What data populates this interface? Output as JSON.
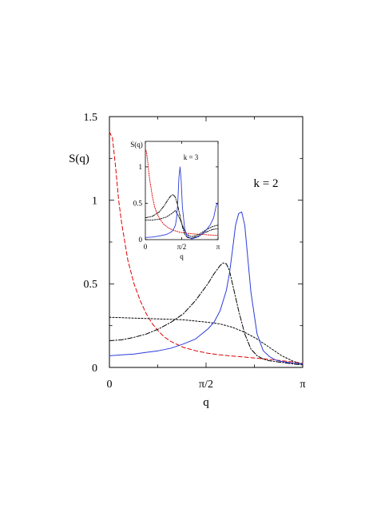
{
  "chart_data": [
    {
      "type": "line",
      "title": "",
      "annotation": "k = 2",
      "xlabel": "q",
      "ylabel": "S(q)",
      "xlim": [
        0,
        3.1416
      ],
      "ylim": [
        0,
        1.5
      ],
      "x_ticks": [
        {
          "value": 0,
          "label": "0"
        },
        {
          "value": 1.5708,
          "label": "π/2"
        },
        {
          "value": 3.1416,
          "label": "π"
        }
      ],
      "y_ticks": [
        {
          "value": 0,
          "label": "0"
        },
        {
          "value": 0.5,
          "label": "0.5"
        },
        {
          "value": 1,
          "label": "1"
        },
        {
          "value": 1.5,
          "label": "1.5"
        }
      ],
      "grid": false,
      "series": [
        {
          "color": "#e00000",
          "dash": "dashed",
          "x": [
            0.0,
            0.05,
            0.1,
            0.15,
            0.2,
            0.3,
            0.4,
            0.5,
            0.6,
            0.7,
            0.8,
            0.9,
            1.0,
            1.2,
            1.4,
            1.6,
            1.8,
            2.0,
            2.2,
            2.4,
            2.6,
            2.8,
            3.0,
            3.1416
          ],
          "y": [
            1.41,
            1.37,
            1.2,
            1.0,
            0.86,
            0.64,
            0.5,
            0.4,
            0.32,
            0.26,
            0.215,
            0.18,
            0.155,
            0.12,
            0.1,
            0.085,
            0.075,
            0.068,
            0.062,
            0.055,
            0.048,
            0.04,
            0.032,
            0.025
          ]
        },
        {
          "color": "#000000",
          "dash": "dotted",
          "x": [
            0.0,
            0.4,
            0.8,
            1.2,
            1.6,
            1.8,
            2.0,
            2.2,
            2.4,
            2.6,
            2.8,
            3.0,
            3.1416
          ],
          "y": [
            0.3,
            0.295,
            0.29,
            0.285,
            0.27,
            0.26,
            0.24,
            0.21,
            0.17,
            0.12,
            0.07,
            0.035,
            0.02
          ]
        },
        {
          "color": "#000000",
          "dash": "dashdot",
          "x": [
            0.0,
            0.2,
            0.4,
            0.6,
            0.8,
            1.0,
            1.2,
            1.4,
            1.6,
            1.7,
            1.8,
            1.85,
            1.9,
            1.95,
            2.0,
            2.1,
            2.2,
            2.3,
            2.4,
            2.5,
            2.6,
            2.8,
            3.0,
            3.1416
          ],
          "y": [
            0.16,
            0.165,
            0.18,
            0.2,
            0.23,
            0.27,
            0.32,
            0.4,
            0.5,
            0.56,
            0.61,
            0.625,
            0.62,
            0.58,
            0.5,
            0.34,
            0.2,
            0.11,
            0.07,
            0.05,
            0.04,
            0.03,
            0.02,
            0.015
          ]
        },
        {
          "color": "#2a3cd8",
          "dash": "solid",
          "x": [
            0.0,
            0.2,
            0.4,
            0.6,
            0.8,
            1.0,
            1.2,
            1.4,
            1.6,
            1.7,
            1.8,
            1.9,
            1.95,
            2.0,
            2.05,
            2.1,
            2.15,
            2.2,
            2.25,
            2.3,
            2.4,
            2.5,
            2.6,
            2.7,
            2.8,
            3.0,
            3.1416
          ],
          "y": [
            0.07,
            0.075,
            0.08,
            0.09,
            0.1,
            0.115,
            0.14,
            0.17,
            0.23,
            0.27,
            0.34,
            0.46,
            0.56,
            0.7,
            0.85,
            0.92,
            0.93,
            0.85,
            0.65,
            0.45,
            0.2,
            0.1,
            0.065,
            0.045,
            0.035,
            0.025,
            0.02
          ]
        }
      ]
    },
    {
      "type": "line",
      "title": "",
      "annotation": "k = 3",
      "xlabel": "q",
      "ylabel": "S(q)",
      "xlim": [
        0,
        3.1416
      ],
      "ylim": [
        0,
        1.35
      ],
      "x_ticks": [
        {
          "value": 0,
          "label": "0"
        },
        {
          "value": 1.5708,
          "label": "π/2"
        },
        {
          "value": 3.1416,
          "label": "π"
        }
      ],
      "y_ticks": [
        {
          "value": 0,
          "label": "0"
        },
        {
          "value": 0.5,
          "label": "0.5"
        },
        {
          "value": 1,
          "label": "1"
        }
      ],
      "grid": false,
      "series": [
        {
          "color": "#e00000",
          "dash": "dotted",
          "x": [
            0.0,
            0.05,
            0.1,
            0.15,
            0.2,
            0.3,
            0.4,
            0.5,
            0.6,
            0.7,
            0.8,
            1.0,
            1.2,
            1.5,
            2.0,
            2.5,
            3.0,
            3.1416
          ],
          "y": [
            1.25,
            1.2,
            1.08,
            0.92,
            0.8,
            0.6,
            0.45,
            0.36,
            0.3,
            0.25,
            0.21,
            0.16,
            0.13,
            0.1,
            0.08,
            0.07,
            0.06,
            0.06
          ]
        },
        {
          "color": "#000000",
          "dash": "dotted",
          "x": [
            0.0,
            0.3,
            0.6,
            0.9,
            1.1,
            1.3,
            1.5,
            1.6,
            1.7,
            1.8,
            2.0,
            2.3,
            2.6,
            2.9,
            3.1416
          ],
          "y": [
            0.27,
            0.27,
            0.28,
            0.31,
            0.35,
            0.4,
            0.28,
            0.2,
            0.12,
            0.07,
            0.04,
            0.07,
            0.13,
            0.18,
            0.2
          ]
        },
        {
          "color": "#000000",
          "dash": "dashdot",
          "x": [
            0.0,
            0.3,
            0.6,
            0.8,
            1.0,
            1.1,
            1.2,
            1.3,
            1.4,
            1.5,
            1.6,
            1.7,
            1.8,
            2.0,
            2.3,
            2.6,
            2.9,
            3.1416
          ],
          "y": [
            0.3,
            0.32,
            0.38,
            0.46,
            0.56,
            0.6,
            0.62,
            0.58,
            0.47,
            0.32,
            0.18,
            0.08,
            0.03,
            0.02,
            0.05,
            0.1,
            0.14,
            0.15
          ]
        },
        {
          "color": "#2a3cd8",
          "dash": "solid",
          "x": [
            0.0,
            0.3,
            0.6,
            0.9,
            1.1,
            1.2,
            1.3,
            1.35,
            1.4,
            1.45,
            1.5,
            1.55,
            1.6,
            1.7,
            1.8,
            2.0,
            2.3,
            2.6,
            2.8,
            2.95,
            3.05,
            3.1,
            3.1416
          ],
          "y": [
            0.03,
            0.035,
            0.05,
            0.07,
            0.1,
            0.13,
            0.2,
            0.3,
            0.5,
            0.85,
            1.0,
            0.8,
            0.45,
            0.15,
            0.05,
            0.01,
            0.04,
            0.12,
            0.2,
            0.3,
            0.45,
            0.5,
            0.48
          ]
        }
      ]
    }
  ]
}
